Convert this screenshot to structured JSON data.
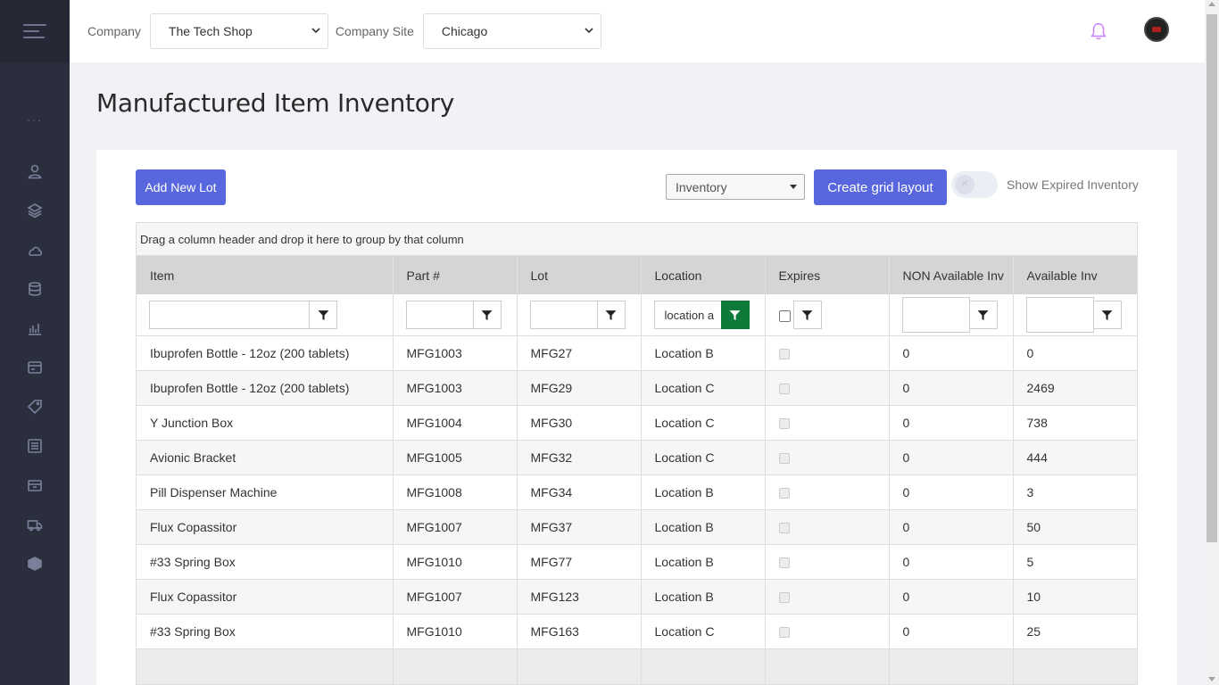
{
  "topbar": {
    "company_label": "Company",
    "company_value": "The Tech Shop",
    "site_label": "Company Site",
    "site_value": "Chicago"
  },
  "sidebar": {
    "dots": "...",
    "icons": [
      "user-icon",
      "layers-icon",
      "cloud-icon",
      "stack-icon",
      "chart-icon",
      "card-icon",
      "tag-icon",
      "list-icon",
      "archive-icon",
      "truck-icon",
      "box-icon"
    ]
  },
  "page": {
    "title": "Manufactured Item Inventory"
  },
  "toolbar": {
    "add_label": "Add New Lot",
    "view_value": "Inventory",
    "create_layout_label": "Create grid layout",
    "toggle_knob": "✕",
    "show_expired_label": "Show Expired Inventory",
    "show_expired_on": false
  },
  "grid": {
    "group_hint": "Drag a column header and drop it here to group by that column",
    "columns": [
      "Item",
      "Part #",
      "Lot",
      "Location",
      "Expires",
      "NON Available Inv",
      "Available Inv"
    ],
    "filters": {
      "item": "",
      "part": "",
      "lot": "",
      "location": "location a",
      "non_available": "",
      "available": ""
    },
    "rows": [
      {
        "item": "Ibuprofen Bottle - 12oz (200 tablets)",
        "part": "MFG1003",
        "lot": "MFG27",
        "location": "Location B",
        "non_available": "0",
        "available": "0"
      },
      {
        "item": "Ibuprofen Bottle - 12oz (200 tablets)",
        "part": "MFG1003",
        "lot": "MFG29",
        "location": "Location C",
        "non_available": "0",
        "available": "2469"
      },
      {
        "item": "Y Junction Box",
        "part": "MFG1004",
        "lot": "MFG30",
        "location": "Location C",
        "non_available": "0",
        "available": "738"
      },
      {
        "item": "Avionic Bracket",
        "part": "MFG1005",
        "lot": "MFG32",
        "location": "Location C",
        "non_available": "0",
        "available": "444"
      },
      {
        "item": "Pill Dispenser Machine",
        "part": "MFG1008",
        "lot": "MFG34",
        "location": "Location B",
        "non_available": "0",
        "available": "3"
      },
      {
        "item": "Flux Copassitor",
        "part": "MFG1007",
        "lot": "MFG37",
        "location": "Location B",
        "non_available": "0",
        "available": "50"
      },
      {
        "item": "#33 Spring Box",
        "part": "MFG1010",
        "lot": "MFG77",
        "location": "Location B",
        "non_available": "0",
        "available": "5"
      },
      {
        "item": "Flux Copassitor",
        "part": "MFG1007",
        "lot": "MFG123",
        "location": "Location B",
        "non_available": "0",
        "available": "10"
      },
      {
        "item": "#33 Spring Box",
        "part": "MFG1010",
        "lot": "MFG163",
        "location": "Location C",
        "non_available": "0",
        "available": "25"
      }
    ]
  },
  "colors": {
    "primary": "#5867dd",
    "sidebar": "#2b2e3d",
    "active_filter": "#0e7a3a",
    "bell": "#c77dff"
  }
}
